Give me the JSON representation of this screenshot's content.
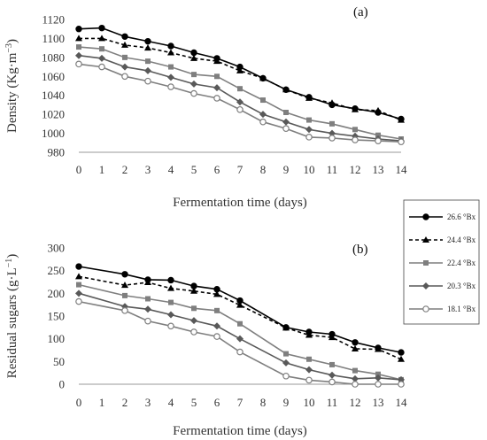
{
  "chart_data": [
    {
      "type": "line",
      "panel_label": "(a)",
      "xlabel": "Fermentation time (days)",
      "ylabel_main": "Density (Kg·m",
      "ylabel_sup": "−3",
      "ylabel_close": ")",
      "ylim": [
        980,
        1120
      ],
      "yticks": [
        980,
        1000,
        1020,
        1040,
        1060,
        1080,
        1100,
        1120
      ],
      "x": [
        0,
        1,
        2,
        3,
        4,
        5,
        6,
        7,
        8,
        9,
        10,
        11,
        12,
        13,
        14
      ],
      "series": [
        {
          "name": "26.6 °Bx",
          "color": "#000000",
          "dash": "",
          "marker": "circle-filled",
          "values": [
            1110,
            1111,
            1102,
            1097,
            1092,
            1085,
            1079,
            1070,
            1058,
            1046,
            1038,
            1030,
            1026,
            1022,
            1015
          ]
        },
        {
          "name": "24.4 °Bx",
          "color": "#000000",
          "dash": "4,3",
          "marker": "triangle",
          "values": [
            1100,
            1100,
            1093,
            1090,
            1085,
            1079,
            1076,
            1066,
            1058,
            1046,
            1037,
            1032,
            1025,
            1024,
            1014
          ]
        },
        {
          "name": "22.4 °Bx",
          "color": "#7f7f7f",
          "dash": "",
          "marker": "square",
          "values": [
            1091,
            1089,
            1080,
            1076,
            1070,
            1062,
            1060,
            1047,
            1035,
            1022,
            1014,
            1010,
            1004,
            998,
            994
          ]
        },
        {
          "name": "20.3 °Bx",
          "color": "#595959",
          "dash": "",
          "marker": "diamond",
          "values": [
            1082,
            1079,
            1070,
            1066,
            1059,
            1052,
            1048,
            1033,
            1020,
            1012,
            1004,
            1000,
            997,
            994,
            992
          ]
        },
        {
          "name": "18.1 °Bx",
          "color": "#7f7f7f",
          "dash": "",
          "marker": "circle-open",
          "values": [
            1073,
            1070,
            1060,
            1055,
            1049,
            1042,
            1037,
            1025,
            1012,
            1005,
            996,
            995,
            993,
            992,
            991
          ]
        }
      ]
    },
    {
      "type": "line",
      "panel_label": "(b)",
      "xlabel": "Fermentation time (days)",
      "ylabel_main": "Residual sugars (g·L",
      "ylabel_sup": "−1",
      "ylabel_close": ")",
      "ylim": [
        0,
        300
      ],
      "yticks": [
        0,
        50,
        100,
        150,
        200,
        250,
        300
      ],
      "x": [
        0,
        2,
        3,
        4,
        5,
        6,
        7,
        9,
        10,
        11,
        12,
        13,
        14
      ],
      "series": [
        {
          "name": "26.6 °Bx",
          "color": "#000000",
          "dash": "",
          "marker": "circle-filled",
          "values": [
            259,
            242,
            230,
            229,
            216,
            209,
            184,
            125,
            115,
            110,
            92,
            80,
            70
          ]
        },
        {
          "name": "24.4 °Bx",
          "color": "#000000",
          "dash": "4,3",
          "marker": "triangle",
          "values": [
            237,
            218,
            224,
            211,
            205,
            198,
            174,
            124,
            108,
            103,
            78,
            77,
            55
          ]
        },
        {
          "name": "22.4 °Bx",
          "color": "#7f7f7f",
          "dash": "",
          "marker": "square",
          "values": [
            219,
            195,
            188,
            180,
            167,
            162,
            133,
            67,
            55,
            43,
            30,
            22,
            10
          ]
        },
        {
          "name": "20.3 °Bx",
          "color": "#595959",
          "dash": "",
          "marker": "diamond",
          "values": [
            200,
            171,
            165,
            153,
            140,
            128,
            100,
            47,
            32,
            20,
            12,
            14,
            10
          ]
        },
        {
          "name": "18.1 °Bx",
          "color": "#7f7f7f",
          "dash": "",
          "marker": "circle-open",
          "values": [
            182,
            162,
            139,
            128,
            115,
            105,
            71,
            18,
            9,
            5,
            0,
            0,
            0
          ]
        }
      ]
    }
  ],
  "legend": {
    "placement": "right",
    "entries": [
      "26.6 °Bx",
      "24.4 °Bx",
      "22.4 °Bx",
      "20.3 °Bx",
      "18.1 °Bx"
    ]
  }
}
